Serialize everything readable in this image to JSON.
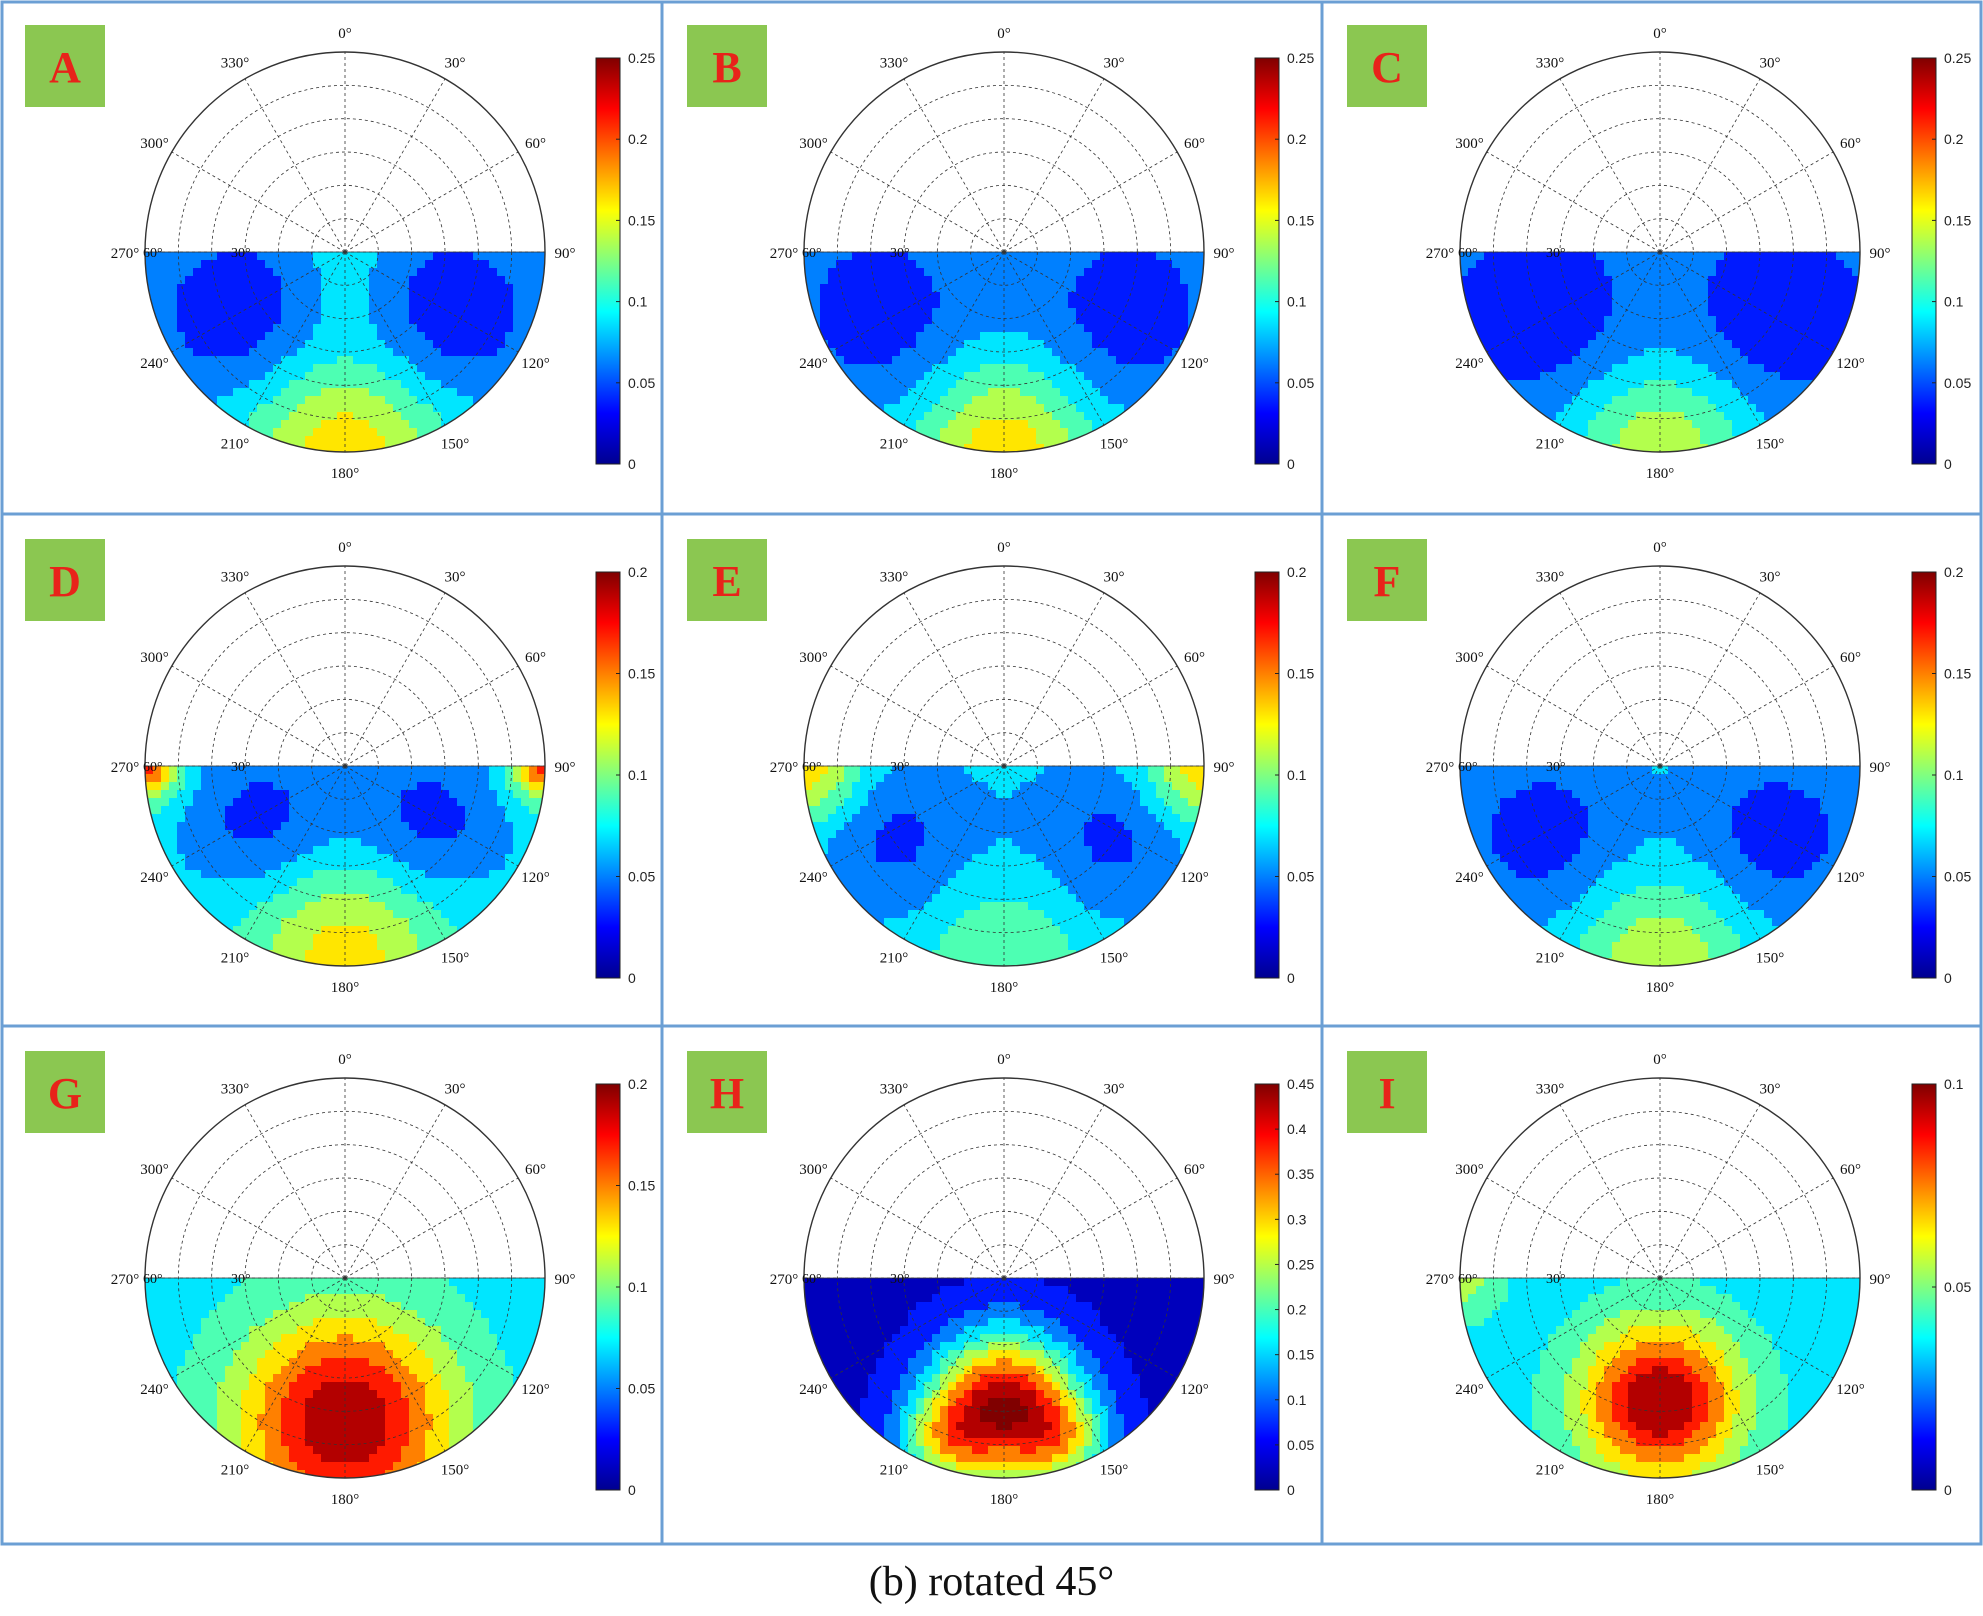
{
  "caption": "(b) rotated 45°",
  "colormap": [
    "#00008f",
    "#0000ff",
    "#0080ff",
    "#00ffff",
    "#80ff80",
    "#ffff00",
    "#ff8000",
    "#ff0000",
    "#800000"
  ],
  "grid_color": "#6b9fd4",
  "label_bg": "#8bc751",
  "label_fg": "#e8231a",
  "chart_data": [
    {
      "type": "polar-contour",
      "label": "A",
      "angle_labels": [
        "0°",
        "30°",
        "60°",
        "90°",
        "120°",
        "150°",
        "180°",
        "210°",
        "240°",
        "270°",
        "300°",
        "330°"
      ],
      "radial_labels": [
        "60°",
        "30°"
      ],
      "colorbar": {
        "min": 0,
        "max": 0.25,
        "ticks": [
          "0.25",
          "0.2",
          "0.15",
          "0.1",
          "0.05",
          "0"
        ]
      },
      "blobs": [
        {
          "angle": 240,
          "r": 0.62,
          "spread": 0.35,
          "value": 0.03
        },
        {
          "angle": 120,
          "r": 0.62,
          "spread": 0.35,
          "value": 0.03
        },
        {
          "angle": 180,
          "r": 0.97,
          "spread": 0.35,
          "value": 0.17
        },
        {
          "angle": 180,
          "r": 0.15,
          "spread": 0.2,
          "value": 0.11
        }
      ],
      "base": 0.09
    },
    {
      "type": "polar-contour",
      "label": "B",
      "angle_labels": [
        "0°",
        "30°",
        "60°",
        "90°",
        "120°",
        "150°",
        "180°",
        "210°",
        "240°",
        "270°",
        "300°",
        "330°"
      ],
      "radial_labels": [
        "60°",
        "30°"
      ],
      "colorbar": {
        "min": 0,
        "max": 0.25,
        "ticks": [
          "0.25",
          "0.2",
          "0.15",
          "0.1",
          "0.05",
          "0"
        ]
      },
      "blobs": [
        {
          "angle": 245,
          "r": 0.7,
          "spread": 0.38,
          "value": 0.035
        },
        {
          "angle": 115,
          "r": 0.7,
          "spread": 0.38,
          "value": 0.035
        },
        {
          "angle": 180,
          "r": 0.97,
          "spread": 0.3,
          "value": 0.17
        }
      ],
      "base": 0.09
    },
    {
      "type": "polar-contour",
      "label": "C",
      "angle_labels": [
        "0°",
        "30°",
        "60°",
        "90°",
        "120°",
        "150°",
        "180°",
        "210°",
        "240°",
        "270°",
        "300°",
        "330°"
      ],
      "radial_labels": [
        "60°",
        "30°"
      ],
      "colorbar": {
        "min": 0,
        "max": 0.25,
        "ticks": [
          "0.25",
          "0.2",
          "0.15",
          "0.1",
          "0.05",
          "0"
        ]
      },
      "blobs": [
        {
          "angle": 245,
          "r": 0.7,
          "spread": 0.4,
          "value": 0.03
        },
        {
          "angle": 115,
          "r": 0.7,
          "spread": 0.4,
          "value": 0.03
        },
        {
          "angle": 180,
          "r": 0.97,
          "spread": 0.3,
          "value": 0.15
        }
      ],
      "base": 0.085
    },
    {
      "type": "polar-contour",
      "label": "D",
      "angle_labels": [
        "0°",
        "30°",
        "60°",
        "90°",
        "120°",
        "150°",
        "180°",
        "210°",
        "240°",
        "270°",
        "300°",
        "330°"
      ],
      "radial_labels": [
        "60°",
        "30°"
      ],
      "colorbar": {
        "min": 0,
        "max": 0.2,
        "ticks": [
          "0.2",
          "0.15",
          "0.1",
          "0.05",
          "0"
        ]
      },
      "blobs": [
        {
          "angle": 235,
          "r": 0.5,
          "spread": 0.28,
          "value": 0.03
        },
        {
          "angle": 125,
          "r": 0.5,
          "spread": 0.28,
          "value": 0.03
        },
        {
          "angle": 180,
          "r": 0.92,
          "spread": 0.35,
          "value": 0.13
        },
        {
          "angle": 270,
          "r": 1.0,
          "spread": 0.12,
          "value": 0.17
        },
        {
          "angle": 90,
          "r": 1.0,
          "spread": 0.12,
          "value": 0.17
        }
      ],
      "base": 0.07
    },
    {
      "type": "polar-contour",
      "label": "E",
      "angle_labels": [
        "0°",
        "30°",
        "60°",
        "90°",
        "120°",
        "150°",
        "180°",
        "210°",
        "240°",
        "270°",
        "300°",
        "330°"
      ],
      "radial_labels": [
        "60°",
        "30°"
      ],
      "colorbar": {
        "min": 0,
        "max": 0.2,
        "ticks": [
          "0.2",
          "0.15",
          "0.1",
          "0.05",
          "0"
        ]
      },
      "blobs": [
        {
          "angle": 235,
          "r": 0.65,
          "spread": 0.3,
          "value": 0.035
        },
        {
          "angle": 125,
          "r": 0.65,
          "spread": 0.3,
          "value": 0.035
        },
        {
          "angle": 270,
          "r": 1.0,
          "spread": 0.2,
          "value": 0.14
        },
        {
          "angle": 90,
          "r": 1.0,
          "spread": 0.2,
          "value": 0.14
        },
        {
          "angle": 180,
          "r": 0.95,
          "spread": 0.3,
          "value": 0.1
        }
      ],
      "base": 0.07
    },
    {
      "type": "polar-contour",
      "label": "F",
      "angle_labels": [
        "0°",
        "30°",
        "60°",
        "90°",
        "120°",
        "150°",
        "180°",
        "210°",
        "240°",
        "270°",
        "300°",
        "330°"
      ],
      "radial_labels": [
        "60°",
        "30°"
      ],
      "colorbar": {
        "min": 0,
        "max": 0.2,
        "ticks": [
          "0.2",
          "0.15",
          "0.1",
          "0.05",
          "0"
        ]
      },
      "blobs": [
        {
          "angle": 240,
          "r": 0.68,
          "spread": 0.33,
          "value": 0.03
        },
        {
          "angle": 120,
          "r": 0.68,
          "spread": 0.33,
          "value": 0.03
        },
        {
          "angle": 180,
          "r": 0.97,
          "spread": 0.3,
          "value": 0.12
        }
      ],
      "base": 0.07
    },
    {
      "type": "polar-contour",
      "label": "G",
      "angle_labels": [
        "0°",
        "30°",
        "60°",
        "90°",
        "120°",
        "150°",
        "180°",
        "210°",
        "240°",
        "270°",
        "300°",
        "330°"
      ],
      "radial_labels": [
        "60°",
        "30°"
      ],
      "colorbar": {
        "min": 0,
        "max": 0.2,
        "ticks": [
          "0.2",
          "0.15",
          "0.1",
          "0.05",
          "0"
        ]
      },
      "blobs": [
        {
          "angle": 180,
          "r": 0.72,
          "spread": 0.38,
          "value": 0.2
        },
        {
          "angle": 180,
          "r": 0.1,
          "spread": 0.15,
          "value": 0.07
        }
      ],
      "base": 0.07
    },
    {
      "type": "polar-contour",
      "label": "H",
      "angle_labels": [
        "0°",
        "30°",
        "60°",
        "90°",
        "120°",
        "150°",
        "180°",
        "210°",
        "240°",
        "270°",
        "300°",
        "330°"
      ],
      "radial_labels": [
        "60°",
        "30°"
      ],
      "colorbar": {
        "min": 0,
        "max": 0.45,
        "ticks": [
          "0.45",
          "0.4",
          "0.35",
          "0.3",
          "0.25",
          "0.2",
          "0.15",
          "0.1",
          "0.05",
          "0"
        ]
      },
      "blobs": [
        {
          "angle": 180,
          "r": 0.62,
          "spread": 0.25,
          "value": 0.42
        },
        {
          "angle": 200,
          "r": 0.88,
          "spread": 0.18,
          "value": 0.2
        },
        {
          "angle": 160,
          "r": 0.88,
          "spread": 0.18,
          "value": 0.2
        }
      ],
      "base": 0.03
    },
    {
      "type": "polar-contour",
      "label": "I",
      "angle_labels": [
        "0°",
        "30°",
        "60°",
        "90°",
        "120°",
        "150°",
        "180°",
        "210°",
        "240°",
        "270°",
        "300°",
        "330°"
      ],
      "radial_labels": [
        "60°",
        "30°"
      ],
      "colorbar": {
        "min": 0,
        "max": 0.1,
        "ticks": [
          "0.1",
          "0.05",
          "0"
        ]
      },
      "blobs": [
        {
          "angle": 180,
          "r": 0.62,
          "spread": 0.28,
          "value": 0.1
        },
        {
          "angle": 270,
          "r": 1.0,
          "spread": 0.15,
          "value": 0.055
        }
      ],
      "base": 0.035
    }
  ]
}
